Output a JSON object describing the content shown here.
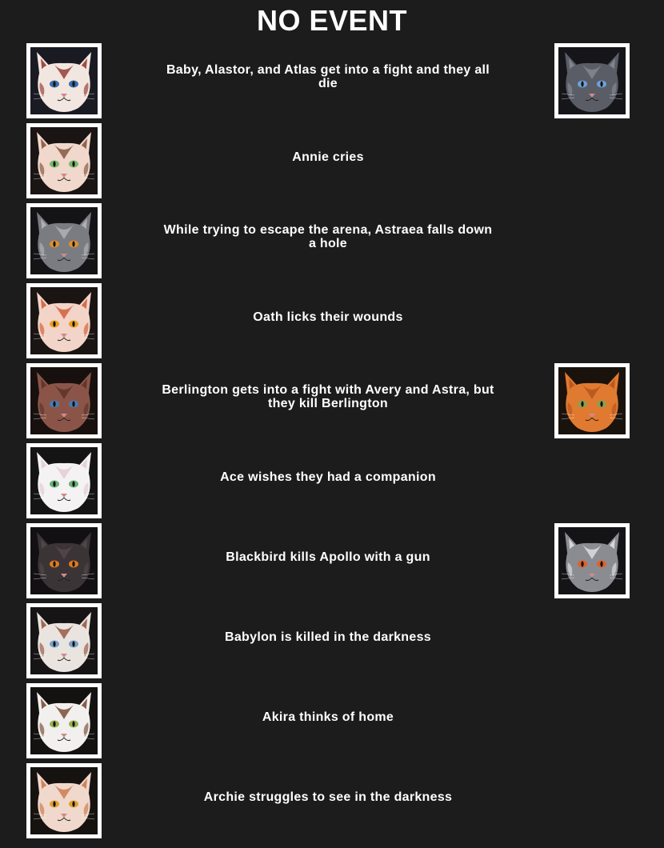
{
  "title": "NO EVENT",
  "events": [
    {
      "text": "Baby, Alastor, and Atlas get into a fight and they all die",
      "left_icon": "cat-portrait-icon",
      "right_icon": "cat-portrait-icon",
      "left_colors": {
        "fur": "#f2e6e0",
        "accent": "#8a2a1e",
        "eye": "#3a6ea8",
        "bg": "#1a1a22"
      },
      "right_colors": {
        "fur": "#5a5d66",
        "accent": "#8b8e97",
        "eye": "#6ea0d8",
        "bg": "#15151a"
      }
    },
    {
      "text": "Annie cries",
      "left_icon": "cat-portrait-icon",
      "left_colors": {
        "fur": "#f0d8cc",
        "accent": "#7a4630",
        "eye": "#7ab86a",
        "bg": "#1a1414"
      }
    },
    {
      "text": "While trying to escape the arena, Astraea falls down a hole",
      "left_icon": "cat-portrait-icon",
      "left_colors": {
        "fur": "#7a7c82",
        "accent": "#b8babf",
        "eye": "#e0902a",
        "bg": "#141416"
      }
    },
    {
      "text": "Oath licks their wounds",
      "left_icon": "cat-portrait-icon",
      "left_colors": {
        "fur": "#f2d4c8",
        "accent": "#d0502a",
        "eye": "#e8a020",
        "bg": "#1a1412"
      }
    },
    {
      "text": "Berlington gets into a fight with Avery and Astra, but they kill Berlington",
      "left_icon": "cat-portrait-icon",
      "right_icon": "cat-portrait-icon",
      "left_colors": {
        "fur": "#8a5548",
        "accent": "#5a2e26",
        "eye": "#4a7ab0",
        "bg": "#18100e"
      },
      "right_colors": {
        "fur": "#e07a30",
        "accent": "#b0501c",
        "eye": "#8aa050",
        "bg": "#1a120c"
      }
    },
    {
      "text": "Ace wishes they had a companion",
      "left_icon": "cat-portrait-icon",
      "left_colors": {
        "fur": "#f4f2f2",
        "accent": "#e0c8d0",
        "eye": "#6ab07a",
        "bg": "#141414"
      }
    },
    {
      "text": "Blackbird kills Apollo with a gun",
      "left_icon": "cat-portrait-icon",
      "right_icon": "cat-portrait-icon",
      "left_colors": {
        "fur": "#3a3436",
        "accent": "#5a4a4c",
        "eye": "#e07a20",
        "bg": "#121012"
      },
      "right_colors": {
        "fur": "#8a8c92",
        "accent": "#e8e8ea",
        "eye": "#e0602a",
        "bg": "#141416"
      }
    },
    {
      "text": "Babylon is killed in the darkness",
      "left_icon": "cat-portrait-icon",
      "left_colors": {
        "fur": "#eae4e0",
        "accent": "#8a4a30",
        "eye": "#7aa0c8",
        "bg": "#161414"
      }
    },
    {
      "text": "Akira thinks of home",
      "left_icon": "cat-portrait-icon",
      "left_colors": {
        "fur": "#f2f0ee",
        "accent": "#6a3a20",
        "eye": "#9ab050",
        "bg": "#141210"
      }
    },
    {
      "text": "Archie struggles to see in the darkness",
      "left_icon": "cat-portrait-icon",
      "left_colors": {
        "fur": "#f0d8cc",
        "accent": "#c87040",
        "eye": "#e0a030",
        "bg": "#161210"
      }
    }
  ]
}
